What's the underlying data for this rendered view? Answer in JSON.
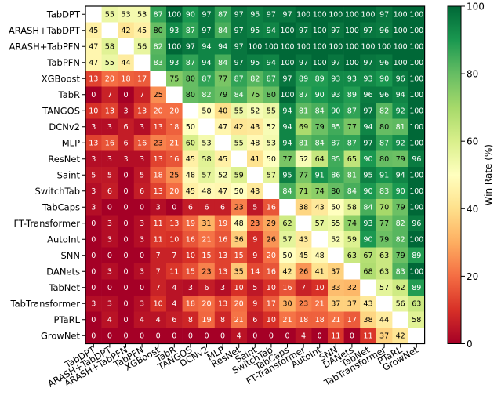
{
  "chart_data": {
    "type": "heatmap",
    "rows": [
      "TabDPT",
      "ARASH+TabDPT",
      "ARASH+TabPFN",
      "TabPFN",
      "XGBoost",
      "TabR",
      "TANGOS",
      "DCNv2",
      "MLP",
      "ResNet",
      "Saint",
      "SwitchTab",
      "TabCaps",
      "FT-Transformer",
      "AutoInt",
      "SNN",
      "DANets",
      "TabNet",
      "TabTransformer",
      "PTaRL",
      "GrowNet"
    ],
    "columns": [
      "TabDPT",
      "ARASH+TabDPT",
      "ARASH+TabPFN",
      "TabPFN",
      "XGBoost",
      "TabR",
      "TANGOS",
      "DCNv2",
      "MLP",
      "ResNet",
      "Saint",
      "SwitchTab",
      "TabCaps",
      "FT-Transformer",
      "AutoInt",
      "SNN",
      "DANets",
      "TabNet",
      "TabTransformer",
      "PTaRL",
      "GrowNet"
    ],
    "values": [
      [
        null,
        55,
        53,
        53,
        87,
        100,
        90,
        97,
        87,
        97,
        95,
        97,
        97,
        100,
        100,
        100,
        100,
        100,
        97,
        100,
        100
      ],
      [
        45,
        null,
        42,
        45,
        80,
        93,
        87,
        97,
        84,
        97,
        95,
        94,
        100,
        97,
        100,
        97,
        100,
        97,
        96,
        100,
        100
      ],
      [
        47,
        58,
        null,
        56,
        82,
        100,
        97,
        94,
        94,
        97,
        100,
        100,
        100,
        100,
        100,
        100,
        100,
        100,
        100,
        100,
        100
      ],
      [
        47,
        55,
        44,
        null,
        83,
        93,
        87,
        94,
        84,
        97,
        95,
        94,
        100,
        97,
        100,
        97,
        100,
        97,
        96,
        100,
        100
      ],
      [
        13,
        20,
        18,
        17,
        null,
        75,
        80,
        87,
        77,
        87,
        82,
        87,
        97,
        89,
        89,
        93,
        93,
        93,
        90,
        96,
        100
      ],
      [
        0,
        7,
        0,
        7,
        25,
        null,
        80,
        82,
        79,
        84,
        75,
        80,
        100,
        87,
        90,
        93,
        89,
        96,
        96,
        94,
        100
      ],
      [
        10,
        13,
        3,
        13,
        20,
        20,
        null,
        50,
        40,
        55,
        52,
        55,
        94,
        81,
        84,
        90,
        87,
        97,
        82,
        92,
        100
      ],
      [
        3,
        3,
        6,
        3,
        13,
        18,
        50,
        null,
        47,
        42,
        43,
        52,
        94,
        69,
        79,
        85,
        77,
        94,
        80,
        81,
        100
      ],
      [
        13,
        16,
        6,
        16,
        23,
        21,
        60,
        53,
        null,
        55,
        48,
        53,
        94,
        81,
        84,
        87,
        87,
        97,
        87,
        92,
        100
      ],
      [
        3,
        3,
        3,
        3,
        13,
        16,
        45,
        58,
        45,
        null,
        41,
        50,
        77,
        52,
        64,
        85,
        65,
        90,
        80,
        79,
        96
      ],
      [
        5,
        5,
        0,
        5,
        18,
        25,
        48,
        57,
        52,
        59,
        null,
        57,
        95,
        77,
        91,
        86,
        81,
        95,
        91,
        94,
        100
      ],
      [
        3,
        6,
        0,
        6,
        13,
        20,
        45,
        48,
        47,
        50,
        43,
        null,
        84,
        71,
        74,
        80,
        84,
        90,
        83,
        90,
        100
      ],
      [
        3,
        0,
        0,
        0,
        3,
        0,
        6,
        6,
        6,
        23,
        5,
        16,
        null,
        38,
        43,
        50,
        58,
        84,
        70,
        79,
        100
      ],
      [
        0,
        3,
        0,
        3,
        11,
        13,
        19,
        31,
        19,
        48,
        23,
        29,
        62,
        null,
        57,
        55,
        74,
        93,
        77,
        82,
        96
      ],
      [
        0,
        3,
        0,
        3,
        11,
        10,
        16,
        21,
        16,
        36,
        9,
        26,
        57,
        43,
        null,
        52,
        59,
        90,
        79,
        82,
        100
      ],
      [
        0,
        0,
        0,
        0,
        7,
        7,
        10,
        15,
        13,
        15,
        9,
        20,
        50,
        45,
        48,
        null,
        63,
        67,
        63,
        79,
        89
      ],
      [
        0,
        3,
        0,
        3,
        7,
        11,
        15,
        23,
        13,
        35,
        14,
        16,
        42,
        26,
        41,
        37,
        null,
        68,
        63,
        83,
        100
      ],
      [
        0,
        0,
        0,
        0,
        7,
        4,
        3,
        6,
        3,
        10,
        5,
        10,
        16,
        7,
        10,
        33,
        32,
        null,
        57,
        62,
        89
      ],
      [
        3,
        3,
        0,
        3,
        10,
        4,
        18,
        20,
        13,
        20,
        9,
        17,
        30,
        23,
        21,
        37,
        37,
        43,
        null,
        56,
        63
      ],
      [
        0,
        4,
        0,
        4,
        4,
        6,
        8,
        19,
        8,
        21,
        6,
        10,
        21,
        18,
        18,
        21,
        17,
        38,
        44,
        null,
        58
      ],
      [
        0,
        0,
        0,
        0,
        0,
        0,
        0,
        0,
        0,
        4,
        0,
        0,
        0,
        4,
        0,
        11,
        0,
        11,
        37,
        42,
        null
      ]
    ],
    "colorbar": {
      "label": "Win Rate (%)",
      "min": 0,
      "max": 100,
      "ticks": [
        0,
        20,
        40,
        60,
        80,
        100
      ],
      "colormap": "red-yellow-green",
      "colors": [
        "#a50026",
        "#ffffbf",
        "#006837"
      ]
    }
  }
}
